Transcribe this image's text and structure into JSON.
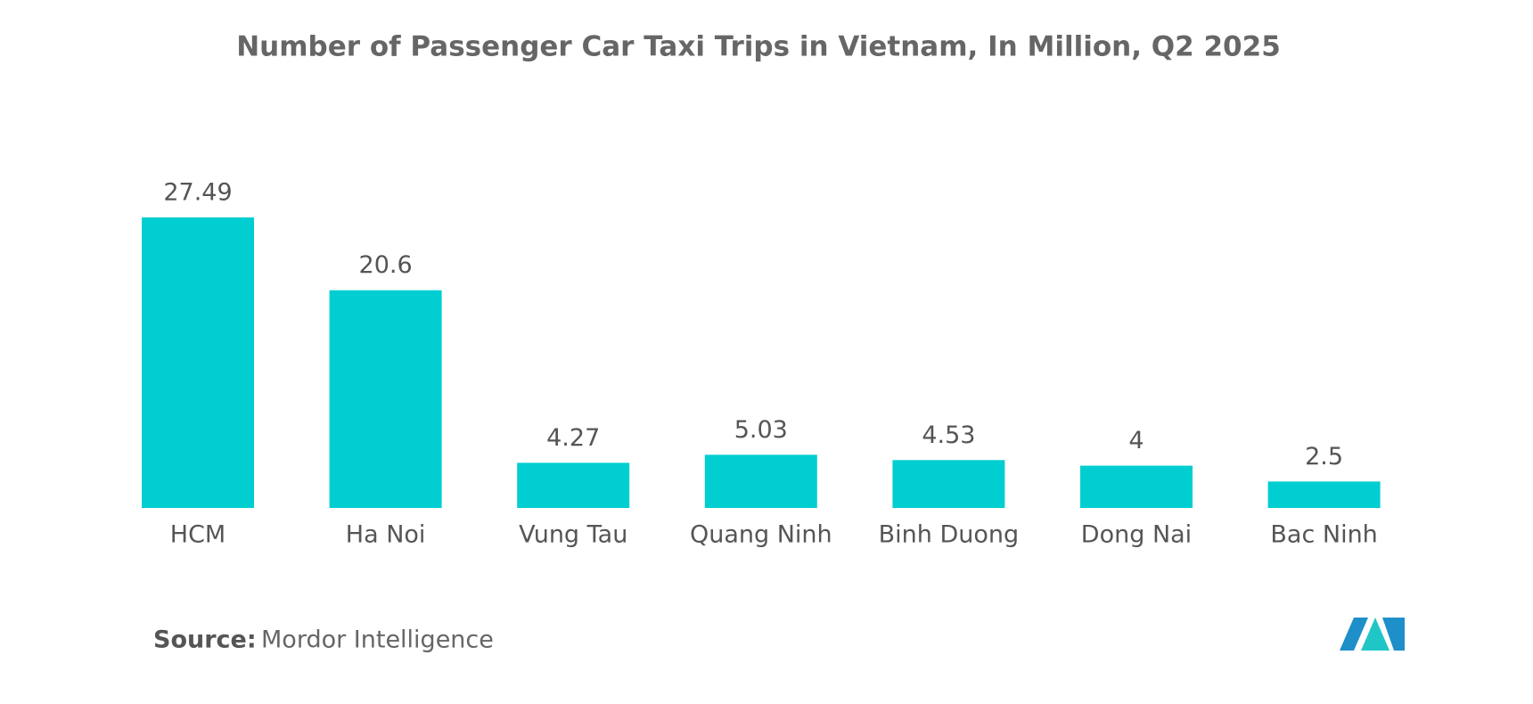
{
  "chart_data": {
    "type": "bar",
    "title": "Number of Passenger Car Taxi Trips in Vietnam, In Million, Q2 2025",
    "categories": [
      "HCM",
      "Ha Noi",
      "Vung Tau",
      "Quang Ninh",
      "Binh Duong",
      "Dong Nai",
      "Bac Ninh"
    ],
    "values": [
      27.49,
      20.6,
      4.27,
      5.03,
      4.53,
      4,
      2.5
    ],
    "color": "#00ced1"
  },
  "source": {
    "label": "Source:",
    "text": "Mordor Intelligence"
  }
}
